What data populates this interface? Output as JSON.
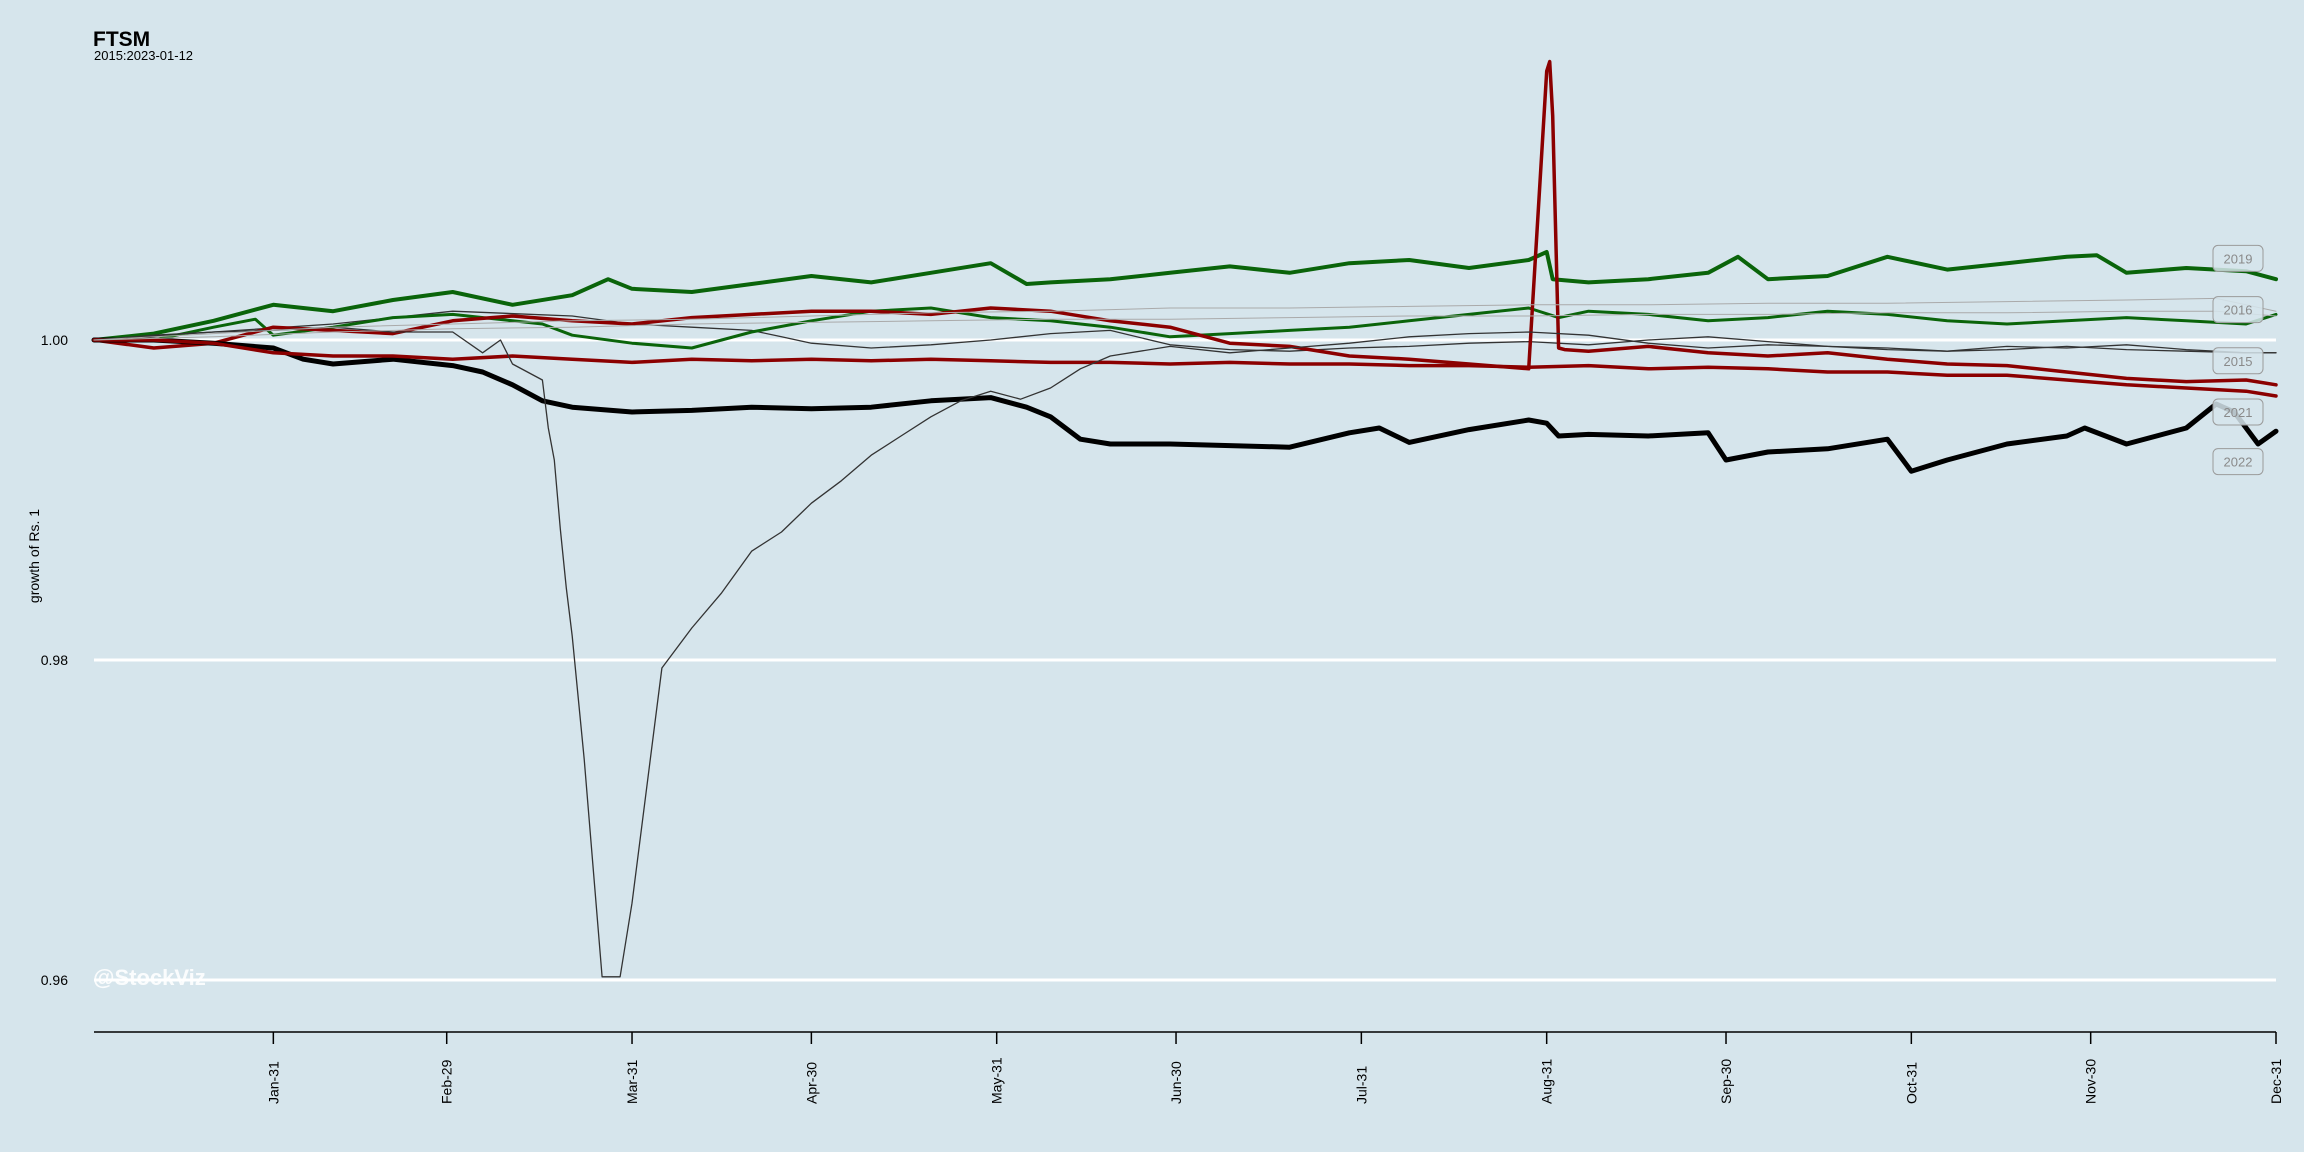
{
  "header": {
    "title": "FTSM",
    "subtitle": "2015:2023-01-12"
  },
  "watermark": "@StockViz",
  "chart_data": {
    "type": "line",
    "title": "FTSM",
    "subtitle": "2015:2023-01-12",
    "xlabel": "",
    "ylabel": "growth of Rs. 1",
    "x_domain": [
      "Jan-01",
      "Dec-31"
    ],
    "ylim": [
      0.9575,
      1.0175
    ],
    "y_ticks": [
      0.96,
      0.98,
      1.0
    ],
    "y_tick_labels": [
      "0.96",
      "0.98",
      "1.00"
    ],
    "x_ticks": [
      {
        "label": "Jan-31",
        "day": 30
      },
      {
        "label": "Feb-29",
        "day": 59
      },
      {
        "label": "Mar-31",
        "day": 90
      },
      {
        "label": "Apr-30",
        "day": 120
      },
      {
        "label": "May-31",
        "day": 151
      },
      {
        "label": "Jun-30",
        "day": 181
      },
      {
        "label": "Jul-31",
        "day": 212
      },
      {
        "label": "Aug-31",
        "day": 243
      },
      {
        "label": "Sep-30",
        "day": 273
      },
      {
        "label": "Oct-31",
        "day": 304
      },
      {
        "label": "Nov-30",
        "day": 334
      },
      {
        "label": "Dec-31",
        "day": 365
      }
    ],
    "grid": "horizontal",
    "colors": {
      "background": "#d6e5ec",
      "grid": "#ffffff",
      "green": "#0a640a",
      "red": "#8b0000",
      "black": "#000000",
      "gray": "#aaaaaa"
    },
    "series": [
      {
        "name": "2015",
        "color": "#333333",
        "width": 1.3,
        "x": [
          0,
          20,
          40,
          60,
          80,
          90,
          100,
          110,
          115,
          120,
          130,
          140,
          150,
          160,
          170,
          180,
          190,
          200,
          210,
          220,
          230,
          240,
          250,
          260,
          270,
          280,
          290,
          300,
          310,
          320,
          330,
          340,
          350,
          360,
          365
        ],
        "y": [
          1.0,
          1.0005,
          1.001,
          1.0018,
          1.0015,
          1.001,
          1.0008,
          1.0006,
          1.0002,
          0.9998,
          0.9995,
          0.9997,
          1.0,
          1.0004,
          1.0006,
          0.9997,
          0.9994,
          0.9993,
          0.9995,
          0.9996,
          0.9998,
          0.9999,
          0.9997,
          1.0,
          1.0002,
          0.9999,
          0.9996,
          0.9994,
          0.9993,
          0.9996,
          0.9995,
          0.9997,
          0.9994,
          0.9992,
          0.9992
        ]
      },
      {
        "name": "2016",
        "color": "#0a640a",
        "width": 3,
        "x": [
          0,
          10,
          20,
          27,
          30,
          40,
          50,
          60,
          70,
          75,
          80,
          90,
          100,
          110,
          120,
          130,
          140,
          150,
          160,
          170,
          180,
          190,
          200,
          210,
          220,
          230,
          240,
          245,
          250,
          260,
          270,
          280,
          290,
          300,
          310,
          320,
          330,
          340,
          350,
          360,
          365
        ],
        "y": [
          1.0,
          1.0,
          1.0008,
          1.0013,
          1.0003,
          1.0008,
          1.0014,
          1.0016,
          1.0012,
          1.001,
          1.0003,
          0.9998,
          0.9995,
          1.0005,
          1.0012,
          1.0018,
          1.002,
          1.0014,
          1.0012,
          1.0008,
          1.0002,
          1.0004,
          1.0006,
          1.0008,
          1.0012,
          1.0016,
          1.002,
          1.0014,
          1.0018,
          1.0016,
          1.0012,
          1.0014,
          1.0018,
          1.0016,
          1.0012,
          1.001,
          1.0012,
          1.0014,
          1.0012,
          1.001,
          1.0016
        ]
      },
      {
        "name": "2019",
        "color": "#0a640a",
        "width": 4,
        "x": [
          0,
          10,
          20,
          30,
          40,
          50,
          60,
          70,
          80,
          86,
          90,
          100,
          110,
          120,
          130,
          140,
          150,
          156,
          160,
          170,
          180,
          190,
          200,
          210,
          220,
          230,
          240,
          243,
          244,
          250,
          260,
          270,
          275,
          280,
          290,
          300,
          310,
          320,
          330,
          335,
          340,
          350,
          360,
          365
        ],
        "y": [
          1.0,
          1.0004,
          1.0012,
          1.0022,
          1.0018,
          1.0025,
          1.003,
          1.0022,
          1.0028,
          1.0038,
          1.0032,
          1.003,
          1.0035,
          1.004,
          1.0036,
          1.0042,
          1.0048,
          1.0035,
          1.0036,
          1.0038,
          1.0042,
          1.0046,
          1.0042,
          1.0048,
          1.005,
          1.0045,
          1.005,
          1.0055,
          1.0038,
          1.0036,
          1.0038,
          1.0042,
          1.0052,
          1.0038,
          1.004,
          1.0052,
          1.0044,
          1.0048,
          1.0052,
          1.0053,
          1.0042,
          1.0045,
          1.0043,
          1.0038
        ]
      },
      {
        "name": "2021",
        "color": "#8b0000",
        "width": 3.5,
        "x": [
          0,
          10,
          20,
          30,
          40,
          50,
          60,
          70,
          80,
          90,
          100,
          110,
          120,
          130,
          140,
          150,
          160,
          170,
          180,
          190,
          200,
          210,
          220,
          230,
          240,
          243,
          243.5,
          244,
          245,
          246,
          250,
          260,
          270,
          280,
          290,
          300,
          310,
          320,
          330,
          340,
          350,
          360,
          365
        ],
        "y": [
          1.0,
          0.9995,
          0.9998,
          1.0008,
          1.0006,
          1.0004,
          1.0012,
          1.0015,
          1.0012,
          1.001,
          1.0014,
          1.0016,
          1.0018,
          1.0018,
          1.0016,
          1.002,
          1.0018,
          1.0012,
          1.0008,
          0.9998,
          0.9996,
          0.999,
          0.9988,
          0.9985,
          0.9982,
          1.0168,
          1.0174,
          1.014,
          0.9995,
          0.9994,
          0.9993,
          0.9996,
          0.9992,
          0.999,
          0.9992,
          0.9988,
          0.9985,
          0.9984,
          0.998,
          0.9976,
          0.9974,
          0.9975,
          0.9972
        ]
      },
      {
        "name": "2022",
        "color": "#000000",
        "width": 5,
        "x": [
          0,
          10,
          20,
          30,
          35,
          40,
          50,
          60,
          65,
          70,
          75,
          80,
          90,
          100,
          110,
          120,
          130,
          140,
          150,
          156,
          160,
          165,
          170,
          180,
          190,
          200,
          210,
          215,
          220,
          230,
          240,
          243,
          245,
          250,
          260,
          270,
          273,
          280,
          290,
          300,
          304,
          310,
          320,
          330,
          333,
          340,
          350,
          355,
          358,
          362,
          365
        ],
        "y": [
          1.0,
          1.0,
          0.9998,
          0.9995,
          0.9988,
          0.9985,
          0.9988,
          0.9984,
          0.998,
          0.9972,
          0.9962,
          0.9958,
          0.9955,
          0.9956,
          0.9958,
          0.9957,
          0.9958,
          0.9962,
          0.9964,
          0.9958,
          0.9952,
          0.9938,
          0.9935,
          0.9935,
          0.9934,
          0.9933,
          0.9942,
          0.9945,
          0.9936,
          0.9944,
          0.995,
          0.9948,
          0.994,
          0.9941,
          0.994,
          0.9942,
          0.9925,
          0.993,
          0.9932,
          0.9938,
          0.9918,
          0.9925,
          0.9935,
          0.994,
          0.9945,
          0.9935,
          0.9945,
          0.996,
          0.9955,
          0.9935,
          0.9943
        ]
      },
      {
        "name": "",
        "color": "#8b0000",
        "width": 3.5,
        "x": [
          0,
          10,
          20,
          30,
          40,
          50,
          60,
          70,
          80,
          90,
          100,
          110,
          120,
          130,
          140,
          150,
          160,
          170,
          180,
          190,
          200,
          210,
          220,
          230,
          240,
          250,
          260,
          270,
          280,
          290,
          300,
          310,
          320,
          330,
          340,
          350,
          360,
          365
        ],
        "y": [
          1.0,
          1.0,
          0.9998,
          0.9992,
          0.999,
          0.999,
          0.9988,
          0.999,
          0.9988,
          0.9986,
          0.9988,
          0.9987,
          0.9988,
          0.9987,
          0.9988,
          0.9987,
          0.9986,
          0.9986,
          0.9985,
          0.9986,
          0.9985,
          0.9985,
          0.9984,
          0.9984,
          0.9983,
          0.9984,
          0.9982,
          0.9983,
          0.9982,
          0.998,
          0.998,
          0.9978,
          0.9978,
          0.9975,
          0.9972,
          0.997,
          0.9968,
          0.9965
        ]
      },
      {
        "name": "",
        "color": "#333333",
        "width": 1.3,
        "x": [
          0,
          10,
          20,
          30,
          40,
          50,
          60,
          65,
          68,
          70,
          75,
          76,
          77,
          78,
          79,
          80,
          82,
          85,
          88,
          90,
          95,
          100,
          105,
          110,
          115,
          120,
          125,
          130,
          135,
          140,
          145,
          150,
          155,
          160,
          165,
          170,
          180,
          190,
          200,
          210,
          220,
          230,
          240,
          250,
          260,
          270,
          280,
          290,
          300,
          310,
          320,
          330,
          340,
          350,
          360,
          365
        ],
        "y": [
          1.0,
          1.0003,
          1.0005,
          1.0006,
          1.0008,
          1.0005,
          1.0005,
          0.9992,
          1.0,
          0.9985,
          0.9975,
          0.9945,
          0.9925,
          0.9882,
          0.9845,
          0.9815,
          0.9738,
          0.9602,
          0.9602,
          0.9648,
          0.9795,
          0.982,
          0.9842,
          0.9868,
          0.988,
          0.9898,
          0.9912,
          0.9928,
          0.994,
          0.9952,
          0.9962,
          0.9968,
          0.9963,
          0.997,
          0.9982,
          0.999,
          0.9996,
          0.9992,
          0.9995,
          0.9998,
          1.0002,
          1.0004,
          1.0005,
          1.0003,
          0.9998,
          0.9995,
          0.9997,
          0.9996,
          0.9995,
          0.9993,
          0.9994,
          0.9996,
          0.9994,
          0.9993,
          0.9992,
          0.9992
        ]
      },
      {
        "name": "",
        "color": "#aaaaaa",
        "width": 1,
        "x": [
          0,
          20,
          40,
          60,
          80,
          100,
          120,
          140,
          160,
          180,
          200,
          220,
          240,
          260,
          280,
          300,
          320,
          340,
          355,
          365
        ],
        "y": [
          1.0,
          1.0004,
          1.0008,
          1.001,
          1.0012,
          1.0013,
          1.0015,
          1.0017,
          1.0018,
          1.002,
          1.002,
          1.0021,
          1.0022,
          1.0022,
          1.0023,
          1.0023,
          1.0024,
          1.0025,
          1.0026,
          1.0018
        ]
      },
      {
        "name": "",
        "color": "#aaaaaa",
        "width": 1,
        "x": [
          0,
          20,
          40,
          60,
          80,
          100,
          120,
          140,
          160,
          180,
          200,
          220,
          240,
          260,
          280,
          300,
          320,
          340,
          355,
          365
        ],
        "y": [
          1.0,
          1.0002,
          1.0005,
          1.0007,
          1.0008,
          1.001,
          1.0011,
          1.0012,
          1.0013,
          1.0013,
          1.0014,
          1.0015,
          1.0015,
          1.0016,
          1.0016,
          1.0017,
          1.0017,
          1.0018,
          1.0018,
          1.0015
        ]
      }
    ],
    "end_labels": [
      {
        "text": "2019",
        "y": 1.0051
      },
      {
        "text": "2016",
        "y": 1.0019
      },
      {
        "text": "2015",
        "y": 0.9987
      },
      {
        "text": "2021",
        "y": 0.9955
      },
      {
        "text": "2022",
        "y": 0.9924
      }
    ]
  }
}
